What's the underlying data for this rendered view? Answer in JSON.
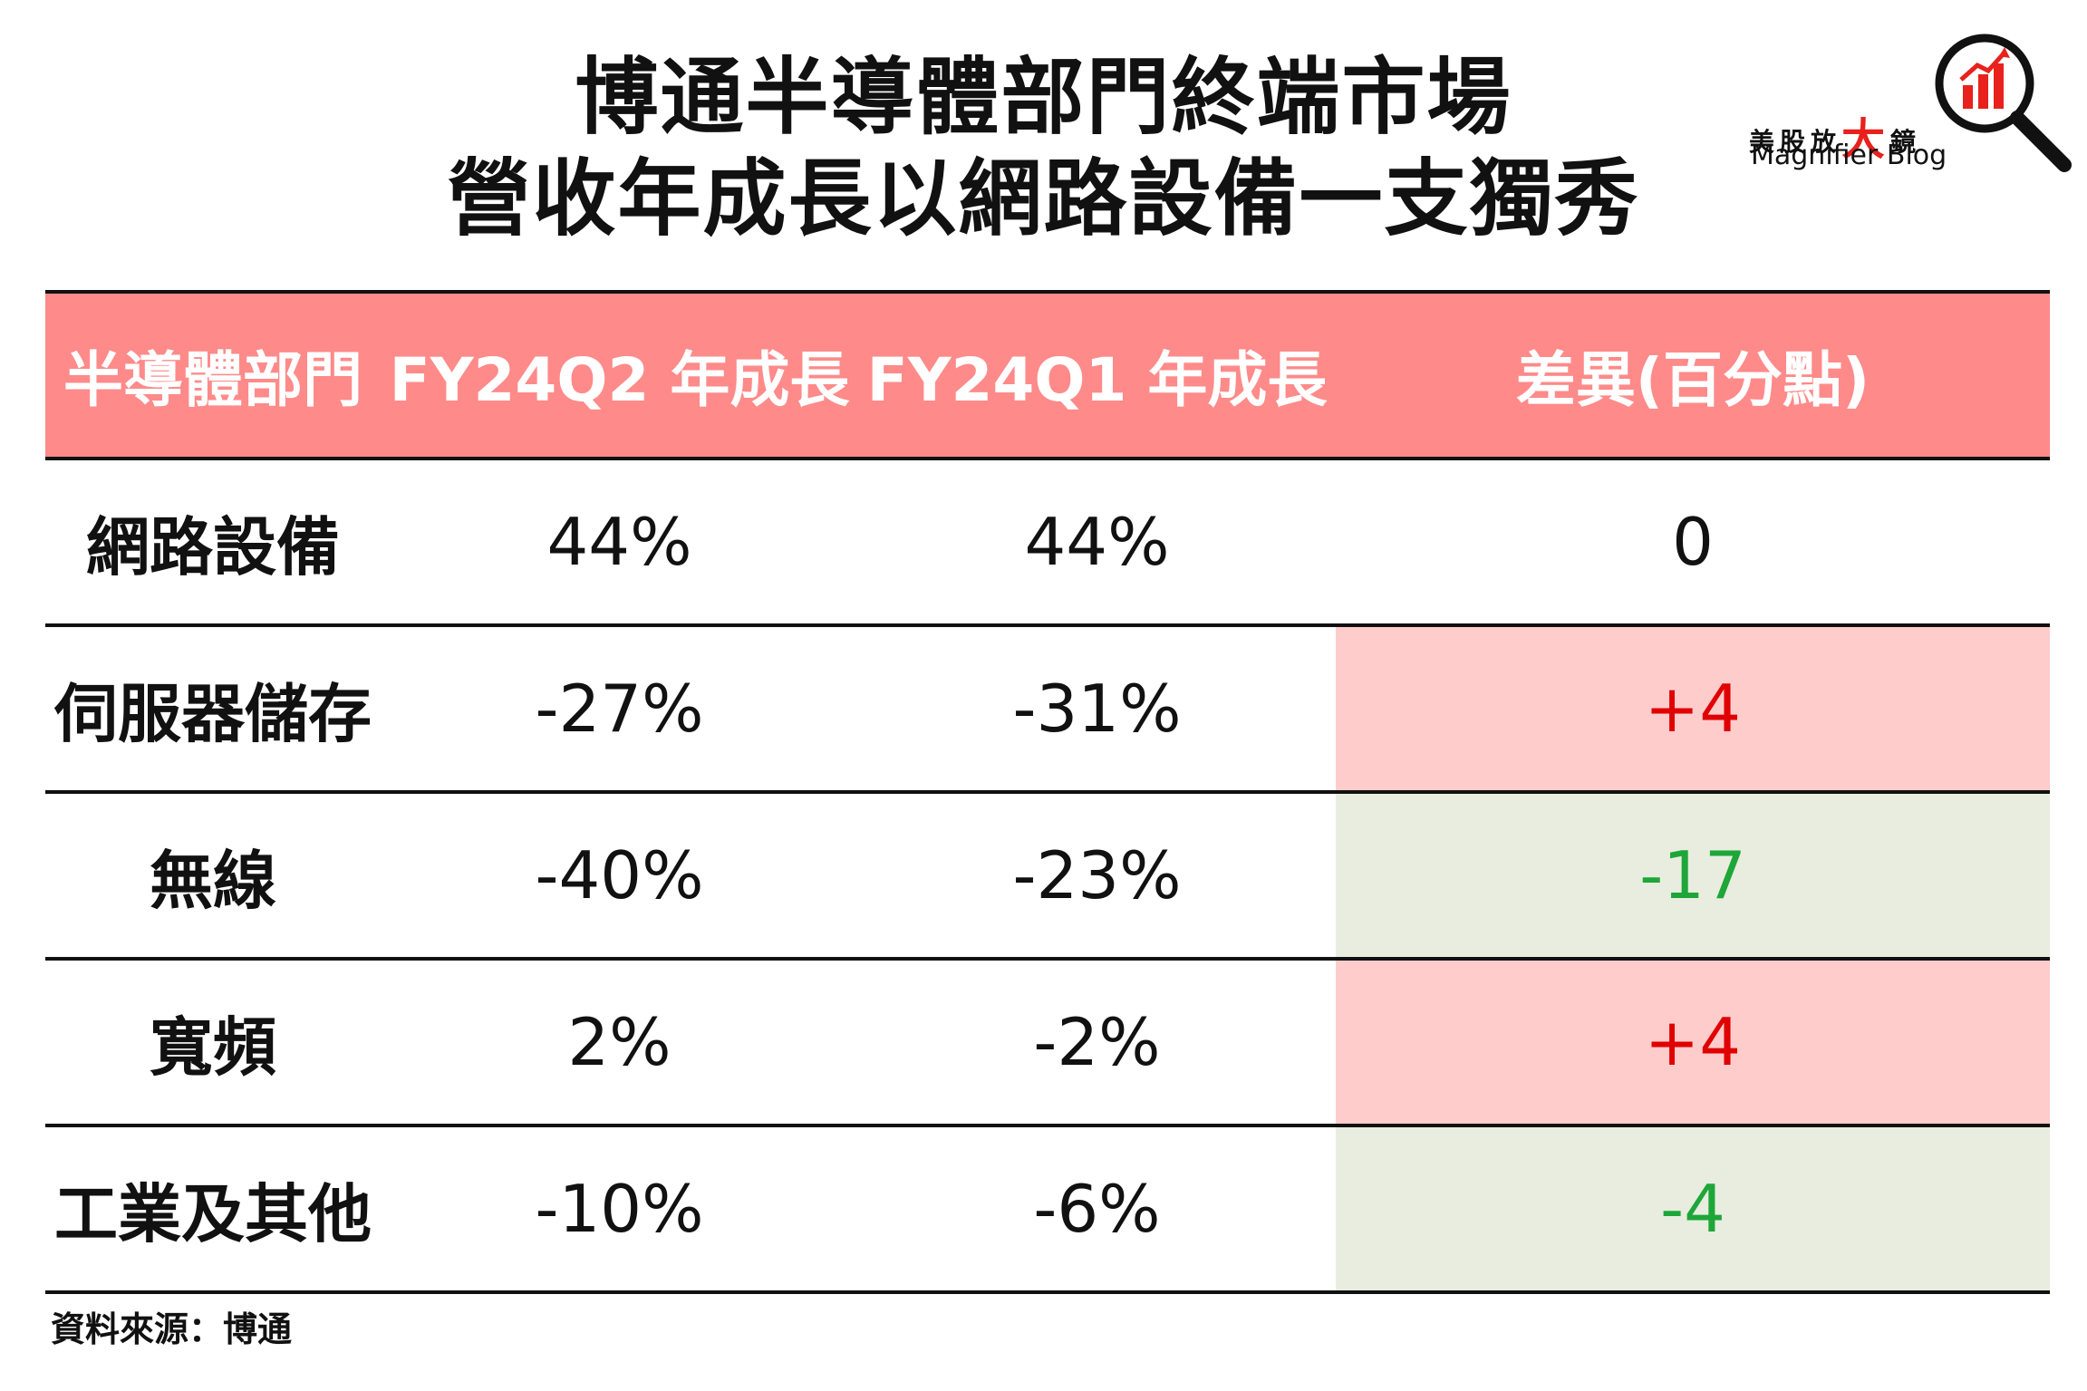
{
  "title": {
    "line1": "博通半導體部門終端市場",
    "line2": "營收年成長以網路設備一支獨秀"
  },
  "logo": {
    "cn_prefix": "美股放",
    "cn_big": "大",
    "cn_suffix": "鏡",
    "en": "Magnifier Blog",
    "icon": "magnifier-bar-chart-icon",
    "accent_color": "#e8211d"
  },
  "colors": {
    "header_bg": "#ff8a8a",
    "positive_bg": "#ffcccc",
    "positive_text": "#e00000",
    "negative_bg": "#e8eddf",
    "negative_text": "#1ea638"
  },
  "chart_data": {
    "type": "table",
    "columns": [
      "半導體部門",
      "FY24Q2 年成長",
      "FY24Q1 年成長",
      "差異(百分點)"
    ],
    "rows": [
      {
        "segment": "網路設備",
        "q2": "44%",
        "q1": "44%",
        "diff": "0",
        "trend": "zero"
      },
      {
        "segment": "伺服器儲存",
        "q2": "-27%",
        "q1": "-31%",
        "diff": "+4",
        "trend": "pos"
      },
      {
        "segment": "無線",
        "q2": "-40%",
        "q1": "-23%",
        "diff": "-17",
        "trend": "neg"
      },
      {
        "segment": "寬頻",
        "q2": "2%",
        "q1": "-2%",
        "diff": "+4",
        "trend": "pos"
      },
      {
        "segment": "工業及其他",
        "q2": "-10%",
        "q1": "-6%",
        "diff": "-4",
        "trend": "neg"
      }
    ]
  },
  "source": "資料來源：博通"
}
